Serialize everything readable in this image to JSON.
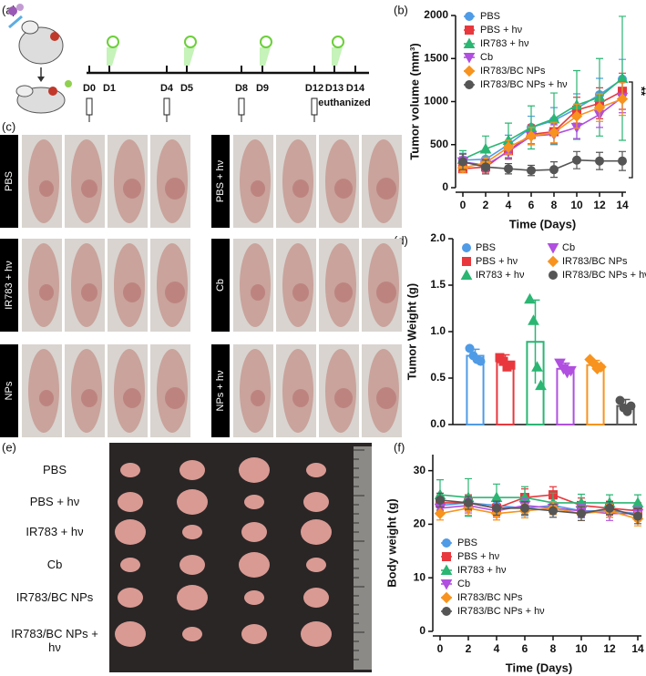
{
  "panel_labels": [
    "(a)",
    "(b)",
    "(c)",
    "(d)",
    "(e)",
    "(f)"
  ],
  "schematic": {
    "days": [
      "D0",
      "D1",
      "D4",
      "D5",
      "D8",
      "D9",
      "D12",
      "D13",
      "D14"
    ],
    "note": "euthanized"
  },
  "mice_photos": {
    "groups": [
      "PBS",
      "PBS + hν",
      "IR783 + hν",
      "Cb",
      "NPs",
      "NPs + hν"
    ]
  },
  "tumor_photos": {
    "groups": [
      "PBS",
      "PBS + hν",
      "IR783 + hν",
      "Cb",
      "IR783/BC NPs",
      "IR783/BC NPs + hν"
    ]
  },
  "chart_data": [
    {
      "type": "line",
      "annotation": "**",
      "x_label": "Time (Days)",
      "y_label": "Tumor volume (mm³)",
      "x": [
        0,
        2,
        4,
        6,
        8,
        10,
        12,
        14
      ],
      "xlim": [
        0,
        14
      ],
      "xticks": [
        0,
        2,
        4,
        6,
        8,
        10,
        12,
        14
      ],
      "ylim": [
        0,
        2000
      ],
      "yticks": [
        0,
        500,
        1000,
        1500,
        2000
      ],
      "series": [
        {
          "name": "PBS",
          "color": "#4f9be6",
          "marker": "circle",
          "values": [
            320,
            330,
            500,
            700,
            780,
            920,
            1080,
            1260
          ],
          "errors": [
            80,
            90,
            110,
            130,
            150,
            170,
            190,
            230
          ]
        },
        {
          "name": "PBS + hν",
          "color": "#e8383d",
          "marker": "square",
          "values": [
            220,
            240,
            430,
            620,
            650,
            900,
            980,
            1120
          ],
          "errors": [
            40,
            60,
            90,
            110,
            130,
            150,
            180,
            210
          ]
        },
        {
          "name": "IR783 + hν",
          "color": "#2bb673",
          "marker": "triangle",
          "values": [
            330,
            450,
            550,
            700,
            800,
            960,
            1050,
            1270
          ],
          "errors": [
            100,
            150,
            200,
            250,
            300,
            400,
            450,
            720
          ]
        },
        {
          "name": "Cb",
          "color": "#b04fe0",
          "marker": "triangle-down",
          "values": [
            300,
            260,
            420,
            600,
            620,
            700,
            850,
            1050
          ],
          "errors": [
            60,
            70,
            90,
            100,
            110,
            130,
            150,
            180
          ]
        },
        {
          "name": "IR783/BC NPs",
          "color": "#f7931e",
          "marker": "diamond",
          "values": [
            230,
            290,
            470,
            600,
            640,
            830,
            930,
            1030
          ],
          "errors": [
            50,
            60,
            80,
            100,
            120,
            140,
            160,
            190
          ]
        },
        {
          "name": "IR783/BC NPs + hν",
          "color": "#555555",
          "marker": "circle",
          "values": [
            300,
            240,
            220,
            200,
            210,
            320,
            310,
            310
          ],
          "errors": [
            90,
            80,
            60,
            60,
            90,
            100,
            100,
            110
          ]
        }
      ]
    },
    {
      "type": "bar",
      "y_label": "Tumor Weight  (g)",
      "categories": [
        "PBS",
        "PBS + hν",
        "IR783 + hν",
        "Cb",
        "IR783/BC NPs",
        "IR783/BC NPs + hν"
      ],
      "colors": [
        "#4f9be6",
        "#e8383d",
        "#2bb673",
        "#b04fe0",
        "#f7931e",
        "#555555"
      ],
      "markers": [
        "circle",
        "square",
        "triangle",
        "triangle-down",
        "diamond",
        "circle"
      ],
      "values": [
        0.74,
        0.67,
        0.89,
        0.6,
        0.64,
        0.2
      ],
      "errors": [
        0.07,
        0.08,
        0.45,
        0.06,
        0.05,
        0.07
      ],
      "points": [
        [
          0.82,
          0.74,
          0.7,
          0.68
        ],
        [
          0.72,
          0.68,
          0.62,
          0.64
        ],
        [
          1.35,
          1.12,
          0.62,
          0.42
        ],
        [
          0.66,
          0.6,
          0.56,
          0.58
        ],
        [
          0.7,
          0.66,
          0.6,
          0.62
        ],
        [
          0.26,
          0.18,
          0.14,
          0.2
        ]
      ],
      "ylim": [
        0,
        2
      ],
      "yticks": [
        {
          "value": 0,
          "label": "0.0"
        },
        0.5,
        {
          "value": 1,
          "label": "1.0"
        },
        1.5,
        {
          "value": 2,
          "label": "2.0"
        }
      ]
    },
    {
      "type": "line",
      "x_label": "Time (Days)",
      "y_label": "Body weight (g)",
      "x": [
        0,
        2,
        4,
        6,
        8,
        10,
        12,
        14
      ],
      "xlim": [
        0,
        14
      ],
      "xticks": [
        0,
        2,
        4,
        6,
        8,
        10,
        12,
        14
      ],
      "ylim": [
        0,
        33
      ],
      "yticks": [
        0,
        10,
        20,
        30
      ],
      "series": [
        {
          "name": "PBS",
          "color": "#4f9be6",
          "marker": "circle",
          "values": [
            23.5,
            24,
            23.5,
            23,
            23.5,
            22.5,
            22.5,
            22
          ],
          "errors": [
            1.2,
            1.5,
            1.3,
            1.4,
            1.2,
            1.3,
            1.2,
            1.4
          ]
        },
        {
          "name": "PBS + hν",
          "color": "#e8383d",
          "marker": "square",
          "values": [
            24,
            24,
            23,
            25,
            25.5,
            23.5,
            23,
            22.5
          ],
          "errors": [
            1.5,
            1.5,
            1.4,
            1.6,
            1.5,
            1.4,
            1.3,
            1.5
          ]
        },
        {
          "name": "IR783 + hν",
          "color": "#2bb673",
          "marker": "triangle",
          "values": [
            25.5,
            25,
            25,
            25,
            24,
            24,
            24,
            24
          ],
          "errors": [
            2.8,
            3.5,
            2.5,
            2,
            1.8,
            1.6,
            1.5,
            1.5
          ]
        },
        {
          "name": "Cb",
          "color": "#b04fe0",
          "marker": "triangle-down",
          "values": [
            23,
            23.5,
            22.5,
            23.5,
            23,
            22.5,
            22,
            22
          ],
          "errors": [
            1.3,
            1.4,
            1.2,
            1.3,
            1.2,
            1.2,
            1.3,
            1.2
          ]
        },
        {
          "name": "IR783/BC NPs",
          "color": "#f7931e",
          "marker": "diamond",
          "values": [
            22,
            23,
            22,
            22.5,
            23,
            22,
            22.5,
            21
          ],
          "errors": [
            1.2,
            1.3,
            1.2,
            1.3,
            1.2,
            1.3,
            1.2,
            1.3
          ]
        },
        {
          "name": "IR783/BC NPs + hν",
          "color": "#555555",
          "marker": "circle",
          "values": [
            24.5,
            24,
            23,
            23,
            22.5,
            22,
            23,
            21.5
          ],
          "errors": [
            1.3,
            1.2,
            1.3,
            1.2,
            1.2,
            1.3,
            1.2,
            1.4
          ]
        }
      ]
    }
  ]
}
